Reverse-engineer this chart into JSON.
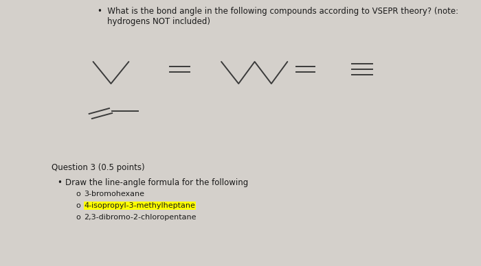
{
  "background_color": "#d4d0cb",
  "title_bullet": "What is the bond angle in the following compounds according to VSEPR theory? (note:\nhydrogens NOT included)",
  "title_fontsize": 8.5,
  "question3_text": "Question 3 (0.5 points)",
  "question3_fontsize": 8.5,
  "bullet2_text": "Draw the line-angle formula for the following",
  "sub1_text": "3-bromohexane",
  "sub2_text": "4-isopropyl-3-methylheptane",
  "sub3_text": "2,3-dibromo-2-chloropentane",
  "highlight_color": "#ffff00",
  "text_color": "#1a1a1a",
  "line_color": "#3a3a3a",
  "line_width": 1.4,
  "fig_width": 7.0,
  "fig_height": 3.88,
  "dpi": 100
}
